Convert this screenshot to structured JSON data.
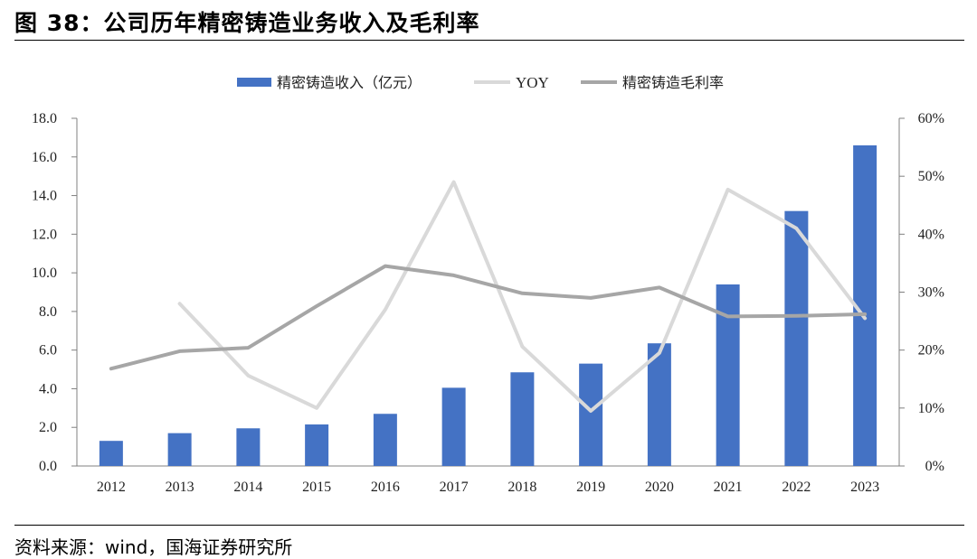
{
  "figure": {
    "title": "图 38：公司历年精密铸造业务收入及毛利率",
    "source": "资料来源：wind，国海证券研究所"
  },
  "chart_data": {
    "type": "bar",
    "categories": [
      "2012",
      "2013",
      "2014",
      "2015",
      "2016",
      "2017",
      "2018",
      "2019",
      "2020",
      "2021",
      "2022",
      "2023"
    ],
    "series": [
      {
        "name": "精密铸造收入（亿元）",
        "type": "bar",
        "axis": "left",
        "color": "#4472C4",
        "values": [
          1.3,
          1.7,
          1.95,
          2.15,
          2.7,
          4.05,
          4.85,
          5.3,
          6.35,
          9.4,
          13.2,
          16.6
        ]
      },
      {
        "name": "YOY",
        "type": "line",
        "axis": "right",
        "color": "#D9D9D9",
        "values": [
          null,
          0.28,
          0.156,
          0.1,
          0.27,
          0.49,
          0.206,
          0.095,
          0.195,
          0.477,
          0.41,
          0.255
        ]
      },
      {
        "name": "精密铸造毛利率",
        "type": "line",
        "axis": "right",
        "color": "#A6A6A6",
        "values": [
          0.168,
          0.198,
          0.204,
          0.276,
          0.345,
          0.329,
          0.298,
          0.29,
          0.308,
          0.258,
          0.259,
          0.262
        ]
      }
    ],
    "y_left": {
      "min": 0,
      "max": 18,
      "ticks": [
        "0.0",
        "2.0",
        "4.0",
        "6.0",
        "8.0",
        "10.0",
        "12.0",
        "14.0",
        "16.0",
        "18.0"
      ]
    },
    "y_right": {
      "min": 0,
      "max": 0.6,
      "ticks": [
        "0%",
        "10%",
        "20%",
        "30%",
        "40%",
        "50%",
        "60%"
      ]
    },
    "legend_position": "top",
    "grid": false
  }
}
